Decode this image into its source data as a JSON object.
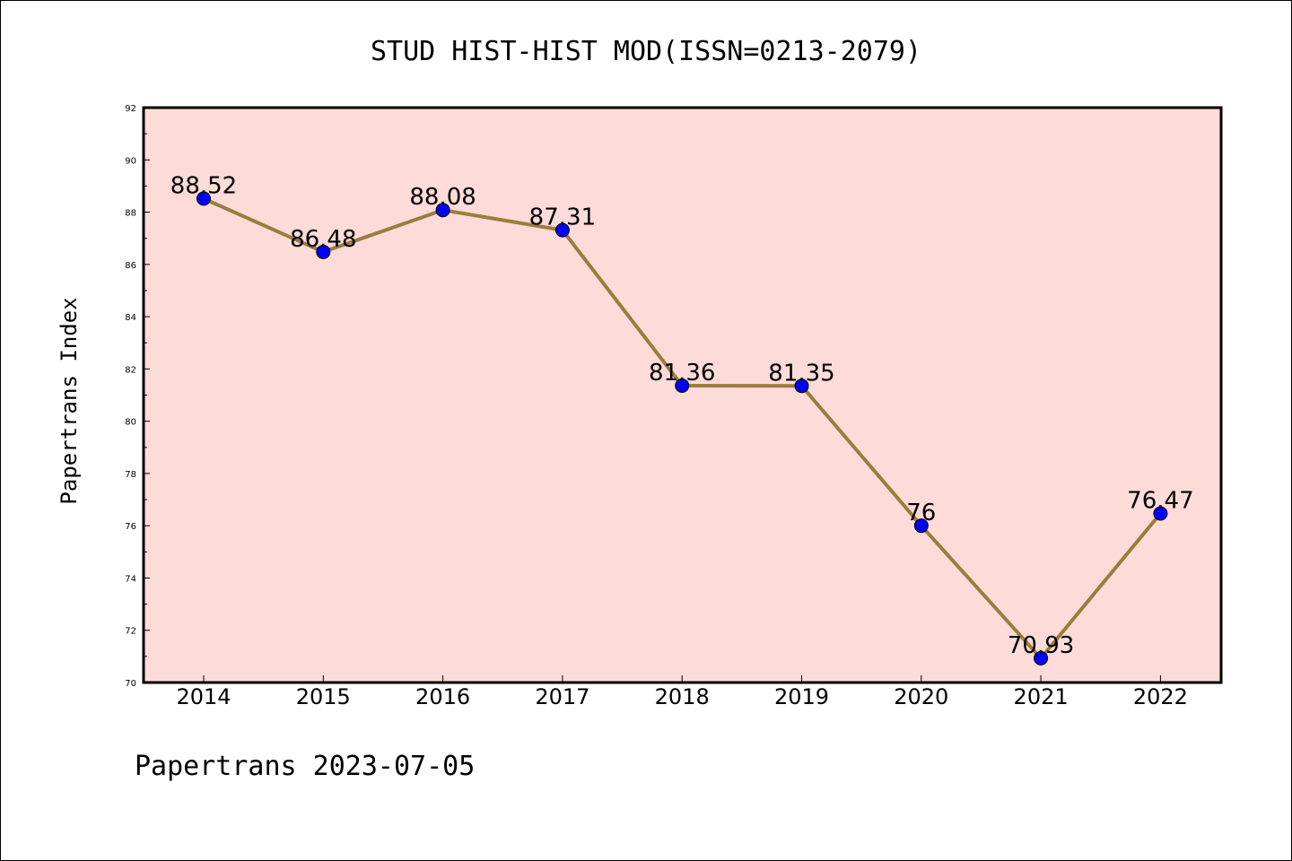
{
  "chart_data": {
    "type": "line",
    "title": "STUD HIST-HIST MOD(ISSN=0213-2079)",
    "xlabel": "",
    "ylabel": "Papertrans Index",
    "footer": "Papertrans 2023-07-05",
    "categories": [
      "2014",
      "2015",
      "2016",
      "2017",
      "2018",
      "2019",
      "2020",
      "2021",
      "2022"
    ],
    "values": [
      88.52,
      86.48,
      88.08,
      87.31,
      81.36,
      81.35,
      76,
      70.93,
      76.47
    ],
    "data_labels": [
      "88.52",
      "86.48",
      "88.08",
      "87.31",
      "81.36",
      "81.35",
      "76",
      "70.93",
      "76.47"
    ],
    "ylim": [
      70,
      92
    ],
    "yticks": [
      70,
      72,
      74,
      76,
      78,
      80,
      82,
      84,
      86,
      88,
      90,
      92
    ],
    "grid": false,
    "legend": "none",
    "colors": {
      "plot_background": "#fddbd8",
      "line": "#9a7d3c",
      "marker": "#0000ff",
      "axes": "#000000"
    }
  }
}
